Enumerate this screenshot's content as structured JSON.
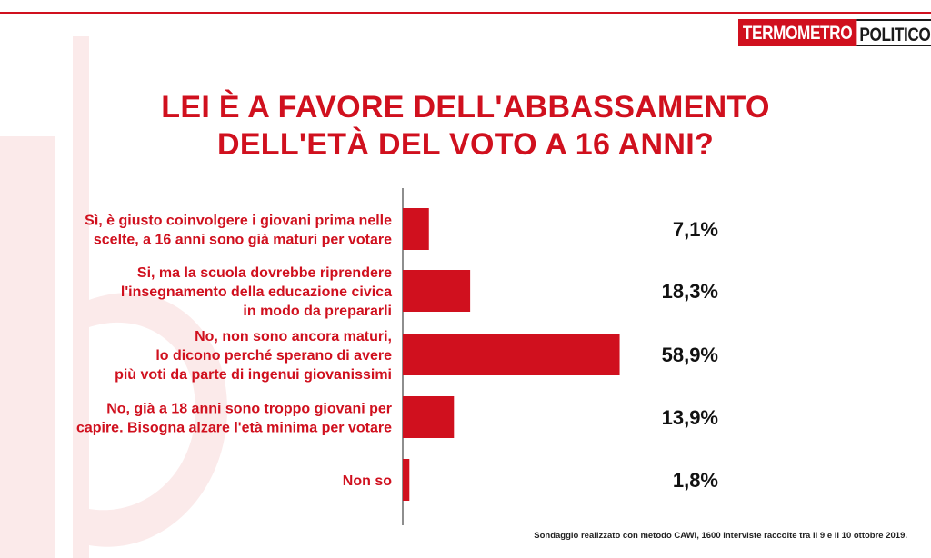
{
  "logo": {
    "part1": "TERMOMETRO",
    "part2": "POLITICO"
  },
  "colors": {
    "accent": "#d0101e",
    "axis": "#444444",
    "text": "#111111"
  },
  "chart_data": {
    "type": "bar",
    "orientation": "horizontal",
    "title_lines": [
      "LEI È A FAVORE DELL'ABBASSAMENTO",
      "DELL'ETÀ DEL VOTO A 16 ANNI?"
    ],
    "categories": [
      [
        "Sì, è giusto coinvolgere i giovani prima nelle",
        "scelte, a 16 anni sono già maturi per votare"
      ],
      [
        "Si, ma la scuola dovrebbe riprendere",
        "l'insegnamento della educazione civica",
        "in modo da prepararli"
      ],
      [
        "No, non sono ancora maturi,",
        "lo dicono perché sperano di avere",
        "più voti da parte di ingenui giovanissimi"
      ],
      [
        "No, già a 18 anni sono troppo giovani per",
        "capire. Bisogna alzare l'età minima per votare"
      ],
      [
        "Non so"
      ]
    ],
    "values": [
      7.1,
      18.3,
      58.9,
      13.9,
      1.8
    ],
    "value_labels": [
      "7,1%",
      "18,3%",
      "58,9%",
      "13,9%",
      "1,8%"
    ],
    "xlim": [
      0,
      100
    ],
    "grid": false,
    "legend": "none"
  },
  "footnote": "Sondaggio realizzato con metodo CAWI, 1600 interviste raccolte tra il 9 e il 10 ottobre 2019."
}
